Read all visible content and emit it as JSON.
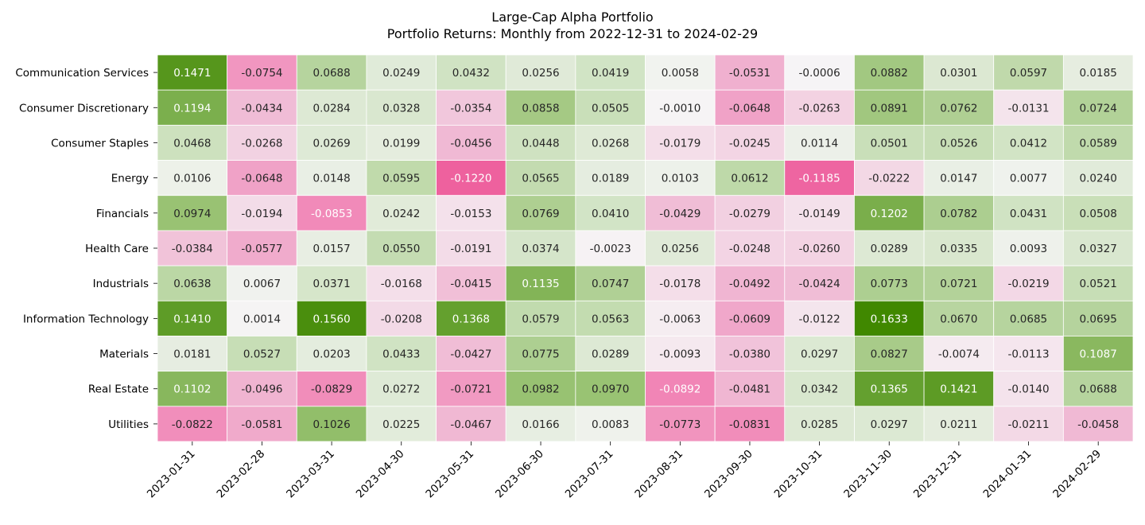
{
  "chart_data": {
    "type": "heatmap",
    "title": "Large-Cap Alpha Portfolio",
    "subtitle": "Portfolio Returns: Monthly from 2022-12-31 to 2024-02-29",
    "rows": [
      "Communication Services",
      "Consumer Discretionary",
      "Consumer Staples",
      "Energy",
      "Financials",
      "Health Care",
      "Industrials",
      "Information Technology",
      "Materials",
      "Real Estate",
      "Utilities"
    ],
    "columns": [
      "2023-01-31",
      "2023-02-28",
      "2023-03-31",
      "2023-04-30",
      "2023-05-31",
      "2023-06-30",
      "2023-07-31",
      "2023-08-31",
      "2023-09-30",
      "2023-10-31",
      "2023-11-30",
      "2023-12-31",
      "2024-01-31",
      "2024-02-29"
    ],
    "values": [
      [
        0.1471,
        -0.0754,
        0.0688,
        0.0249,
        0.0432,
        0.0256,
        0.0419,
        0.0058,
        -0.0531,
        -0.0006,
        0.0882,
        0.0301,
        0.0597,
        0.0185
      ],
      [
        0.1194,
        -0.0434,
        0.0284,
        0.0328,
        -0.0354,
        0.0858,
        0.0505,
        -0.001,
        -0.0648,
        -0.0263,
        0.0891,
        0.0762,
        -0.0131,
        0.0724
      ],
      [
        0.0468,
        -0.0268,
        0.0269,
        0.0199,
        -0.0456,
        0.0448,
        0.0268,
        -0.0179,
        -0.0245,
        0.0114,
        0.0501,
        0.0526,
        0.0412,
        0.0589
      ],
      [
        0.0106,
        -0.0648,
        0.0148,
        0.0595,
        -0.122,
        0.0565,
        0.0189,
        0.0103,
        0.0612,
        -0.1185,
        -0.0222,
        0.0147,
        0.0077,
        0.024
      ],
      [
        0.0974,
        -0.0194,
        -0.0853,
        0.0242,
        -0.0153,
        0.0769,
        0.041,
        -0.0429,
        -0.0279,
        -0.0149,
        0.1202,
        0.0782,
        0.0431,
        0.0508
      ],
      [
        -0.0384,
        -0.0577,
        0.0157,
        0.055,
        -0.0191,
        0.0374,
        -0.0023,
        0.0256,
        -0.0248,
        -0.026,
        0.0289,
        0.0335,
        0.0093,
        0.0327
      ],
      [
        0.0638,
        0.0067,
        0.0371,
        -0.0168,
        -0.0415,
        0.1135,
        0.0747,
        -0.0178,
        -0.0492,
        -0.0424,
        0.0773,
        0.0721,
        -0.0219,
        0.0521
      ],
      [
        0.141,
        0.0014,
        0.156,
        -0.0208,
        0.1368,
        0.0579,
        0.0563,
        -0.0063,
        -0.0609,
        -0.0122,
        0.1633,
        0.067,
        0.0685,
        0.0695
      ],
      [
        0.0181,
        0.0527,
        0.0203,
        0.0433,
        -0.0427,
        0.0775,
        0.0289,
        -0.0093,
        -0.038,
        0.0297,
        0.0827,
        -0.0074,
        -0.0113,
        0.1087
      ],
      [
        0.1102,
        -0.0496,
        -0.0829,
        0.0272,
        -0.0721,
        0.0982,
        0.097,
        -0.0892,
        -0.0481,
        0.0342,
        0.1365,
        0.1421,
        -0.014,
        0.0688
      ],
      [
        -0.0822,
        -0.0581,
        0.1026,
        0.0225,
        -0.0467,
        0.0166,
        0.0083,
        -0.0773,
        -0.0831,
        0.0285,
        0.0297,
        0.0211,
        -0.0211,
        -0.0458
      ]
    ],
    "value_format": "4 decimals",
    "colormap": "PiYG diverging, centered at 0",
    "color_range": [
      -0.1633,
      0.1633
    ],
    "colorbar": false,
    "grid": false
  }
}
